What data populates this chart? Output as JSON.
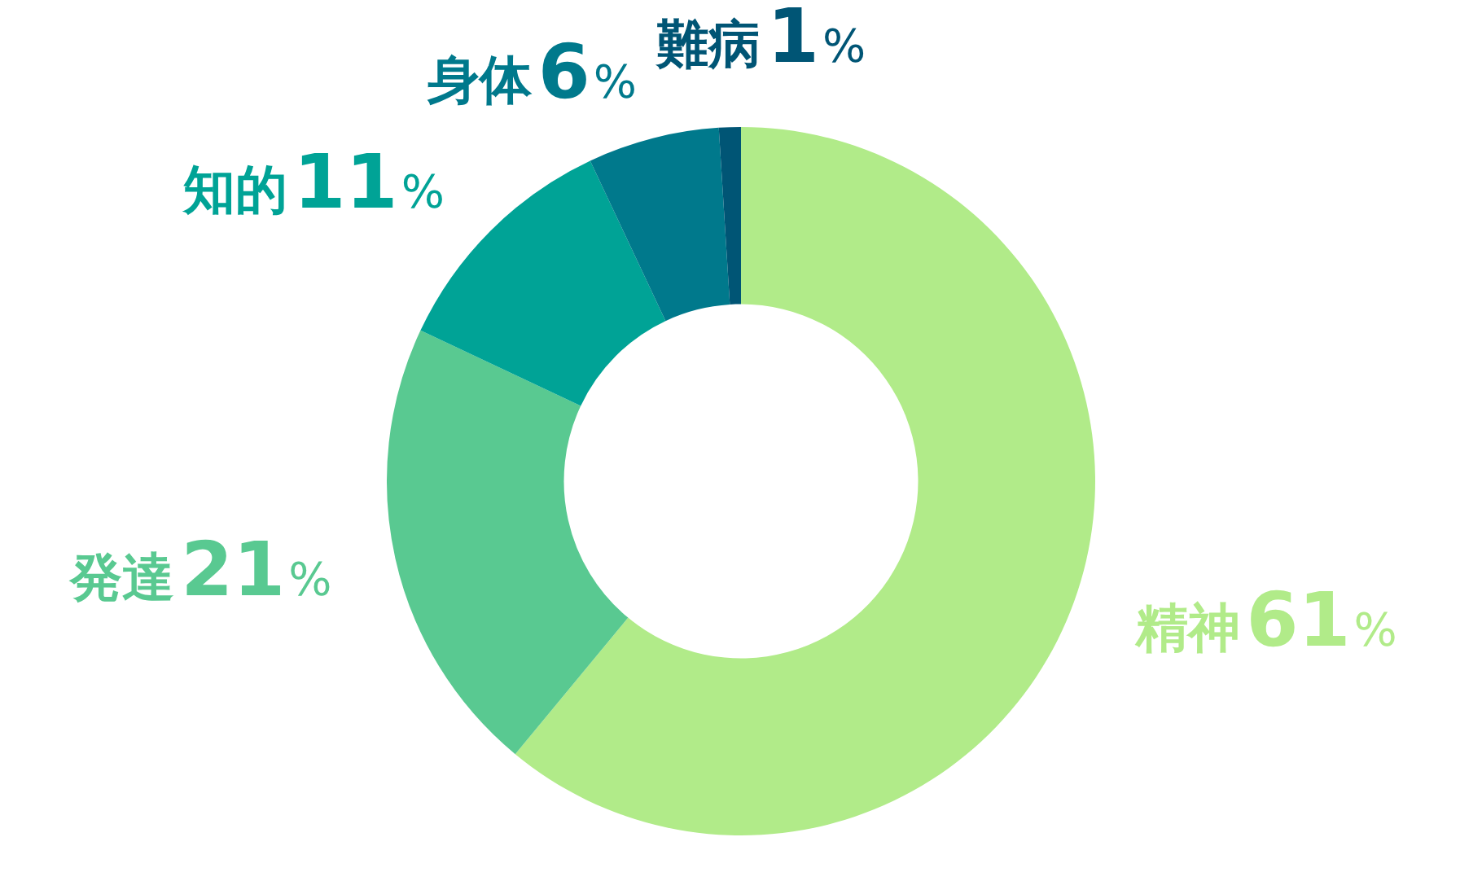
{
  "chart_data": {
    "type": "donut",
    "categories": [
      "精神",
      "発達",
      "知的",
      "身体",
      "難病"
    ],
    "values": [
      61,
      21,
      11,
      6,
      1
    ],
    "colors": [
      "#b1eb89",
      "#59c991",
      "#00a396",
      "#00798c",
      "#005575"
    ],
    "value_labels": [
      "61%",
      "21%",
      "11%",
      "6%",
      "1%"
    ],
    "legend": false
  }
}
